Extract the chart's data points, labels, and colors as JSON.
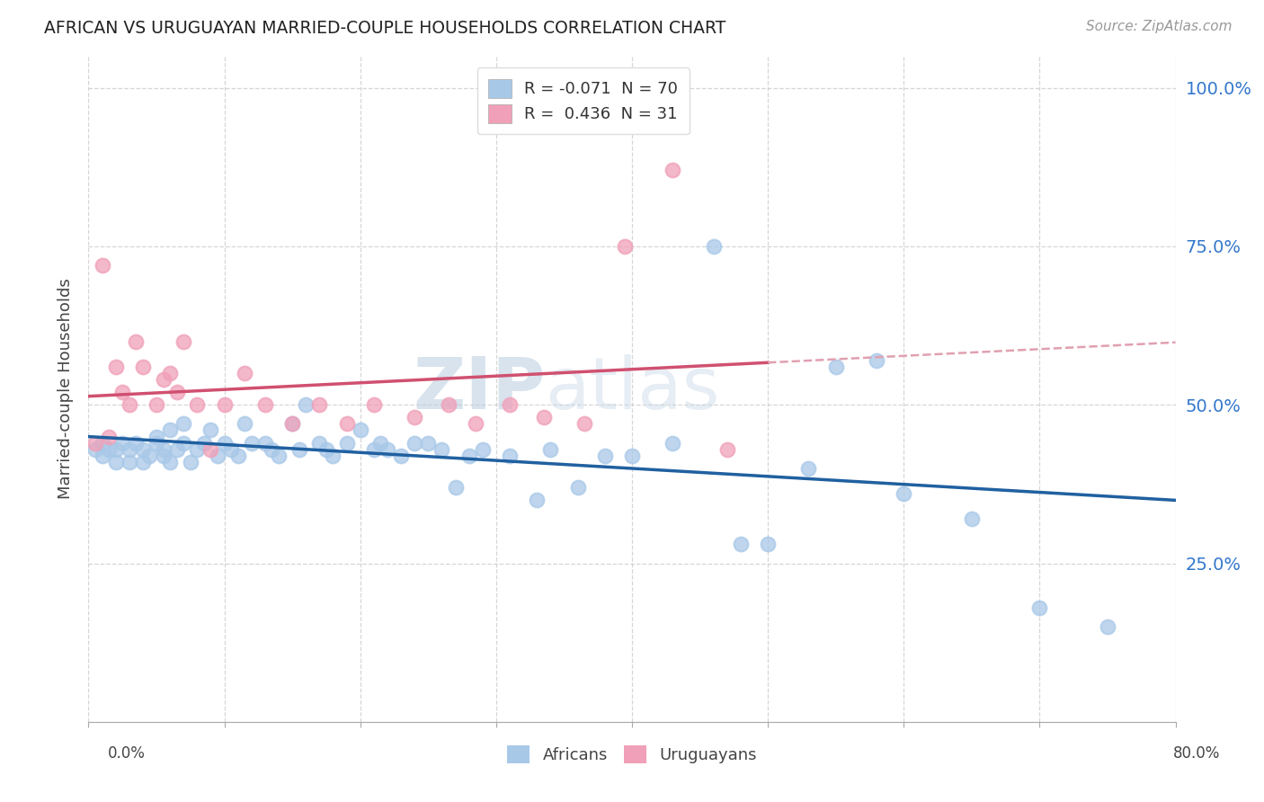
{
  "title": "AFRICAN VS URUGUAYAN MARRIED-COUPLE HOUSEHOLDS CORRELATION CHART",
  "source": "Source: ZipAtlas.com",
  "ylabel": "Married-couple Households",
  "ytick_vals": [
    0.0,
    0.25,
    0.5,
    0.75,
    1.0
  ],
  "ytick_labels": [
    "",
    "25.0%",
    "50.0%",
    "75.0%",
    "100.0%"
  ],
  "xlim": [
    0.0,
    0.8
  ],
  "ylim": [
    0.0,
    1.05
  ],
  "watermark_zip": "ZIP",
  "watermark_atlas": "atlas",
  "african_color": "#a8c8e8",
  "uruguayan_color": "#f0a0b8",
  "african_line_color": "#2060a0",
  "uruguayan_line_color": "#d05070",
  "dashed_color": "#e0a0b0",
  "african_R": -0.071,
  "african_N": 70,
  "uruguayan_R": 0.436,
  "uruguayan_N": 31,
  "africans_x": [
    0.005,
    0.01,
    0.01,
    0.015,
    0.02,
    0.02,
    0.025,
    0.03,
    0.03,
    0.035,
    0.04,
    0.04,
    0.045,
    0.05,
    0.05,
    0.055,
    0.055,
    0.06,
    0.06,
    0.065,
    0.07,
    0.07,
    0.075,
    0.08,
    0.085,
    0.09,
    0.095,
    0.1,
    0.105,
    0.11,
    0.115,
    0.12,
    0.13,
    0.135,
    0.14,
    0.15,
    0.155,
    0.16,
    0.17,
    0.175,
    0.18,
    0.19,
    0.2,
    0.21,
    0.215,
    0.22,
    0.23,
    0.24,
    0.25,
    0.26,
    0.27,
    0.28,
    0.29,
    0.31,
    0.33,
    0.34,
    0.36,
    0.38,
    0.4,
    0.43,
    0.46,
    0.48,
    0.5,
    0.53,
    0.55,
    0.58,
    0.6,
    0.65,
    0.7,
    0.75
  ],
  "africans_y": [
    0.43,
    0.44,
    0.42,
    0.43,
    0.43,
    0.41,
    0.44,
    0.43,
    0.41,
    0.44,
    0.43,
    0.41,
    0.42,
    0.45,
    0.44,
    0.43,
    0.42,
    0.46,
    0.41,
    0.43,
    0.47,
    0.44,
    0.41,
    0.43,
    0.44,
    0.46,
    0.42,
    0.44,
    0.43,
    0.42,
    0.47,
    0.44,
    0.44,
    0.43,
    0.42,
    0.47,
    0.43,
    0.5,
    0.44,
    0.43,
    0.42,
    0.44,
    0.46,
    0.43,
    0.44,
    0.43,
    0.42,
    0.44,
    0.44,
    0.43,
    0.37,
    0.42,
    0.43,
    0.42,
    0.35,
    0.43,
    0.37,
    0.42,
    0.42,
    0.44,
    0.75,
    0.28,
    0.28,
    0.4,
    0.56,
    0.57,
    0.36,
    0.32,
    0.18,
    0.15
  ],
  "uruguayans_x": [
    0.005,
    0.01,
    0.015,
    0.02,
    0.025,
    0.03,
    0.035,
    0.04,
    0.05,
    0.055,
    0.06,
    0.065,
    0.07,
    0.08,
    0.09,
    0.1,
    0.115,
    0.13,
    0.15,
    0.17,
    0.19,
    0.21,
    0.24,
    0.265,
    0.285,
    0.31,
    0.335,
    0.365,
    0.395,
    0.43,
    0.47
  ],
  "uruguayans_y": [
    0.44,
    0.72,
    0.45,
    0.56,
    0.52,
    0.5,
    0.6,
    0.56,
    0.5,
    0.54,
    0.55,
    0.52,
    0.6,
    0.5,
    0.43,
    0.5,
    0.55,
    0.5,
    0.47,
    0.5,
    0.47,
    0.5,
    0.48,
    0.5,
    0.47,
    0.5,
    0.48,
    0.47,
    0.75,
    0.87,
    0.43
  ]
}
